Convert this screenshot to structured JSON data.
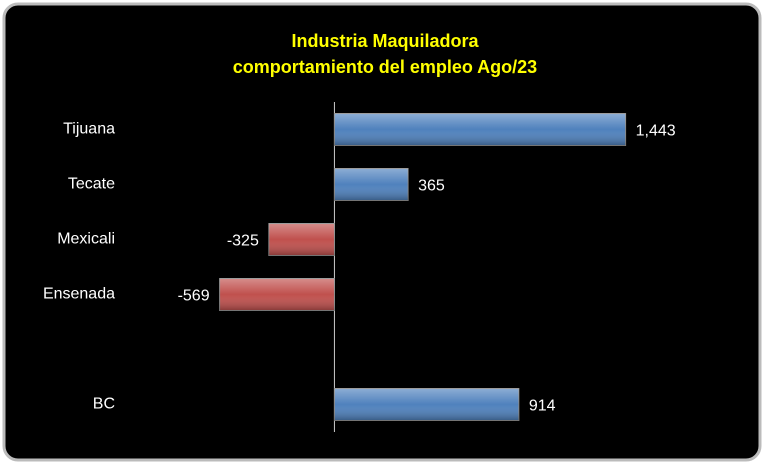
{
  "chart_data": {
    "type": "barh",
    "title": "Industria Maquiladora",
    "subtitle": "comportamiento del empleo Ago/23",
    "categories": [
      "Tijuana",
      "Tecate",
      "Mexicali",
      "Ensenada",
      null,
      "BC"
    ],
    "values": [
      1443,
      365,
      -325,
      -569,
      null,
      914
    ],
    "value_labels": [
      "1,443",
      "365",
      "-325",
      "-569",
      null,
      "914"
    ],
    "colors": [
      "#4f81bd",
      "#4f81bd",
      "#c0504d",
      "#c0504d",
      null,
      "#4f81bd"
    ],
    "xlim": [
      -800,
      2000
    ]
  }
}
